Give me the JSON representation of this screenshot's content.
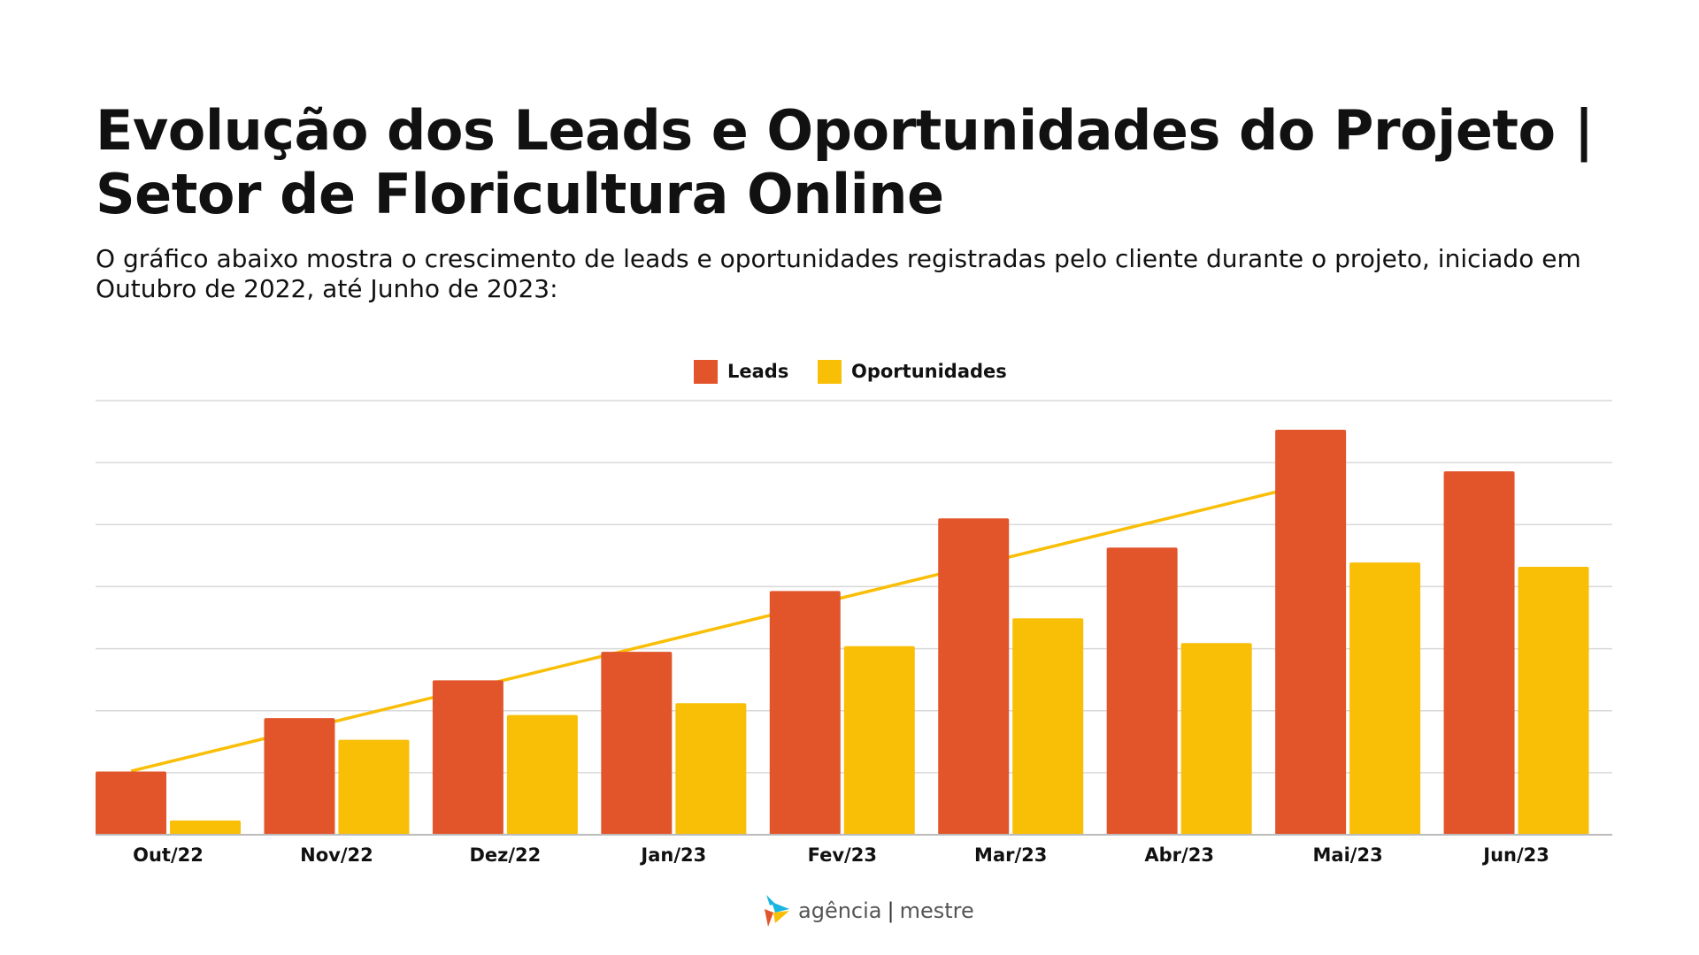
{
  "header": {
    "title": "Evolução dos Leads e Oportunidades do Projeto | Setor de Floricultura Online",
    "subtitle": "O gráfico abaixo mostra o crescimento de leads e oportunidades registradas pelo cliente durante o projeto, iniciado em Outubro de 2022, até Junho de 2023:"
  },
  "chart_data": {
    "type": "bar",
    "categories": [
      "Out/22",
      "Nov/22",
      "Dez/22",
      "Jan/23",
      "Fev/23",
      "Mar/23",
      "Abr/23",
      "Mai/23",
      "Jun/23"
    ],
    "series": [
      {
        "name": "Leads",
        "color": "#E2552B",
        "values": [
          1.02,
          1.88,
          2.49,
          2.95,
          3.93,
          5.1,
          4.63,
          6.53,
          5.86
        ]
      },
      {
        "name": "Oportunidades",
        "color": "#F9BE06",
        "values": [
          0.23,
          1.53,
          1.93,
          2.12,
          3.04,
          3.49,
          3.09,
          4.39,
          4.32
        ]
      }
    ],
    "trendline": {
      "series": "Leads",
      "type": "linear",
      "color": "#F9BE06"
    },
    "ylim": [
      0,
      7
    ],
    "y_tick_labels_shown": false,
    "grid": true,
    "legend": "top-center"
  },
  "footer": {
    "logo_text_left": "agência",
    "logo_text_right": "mestre"
  }
}
